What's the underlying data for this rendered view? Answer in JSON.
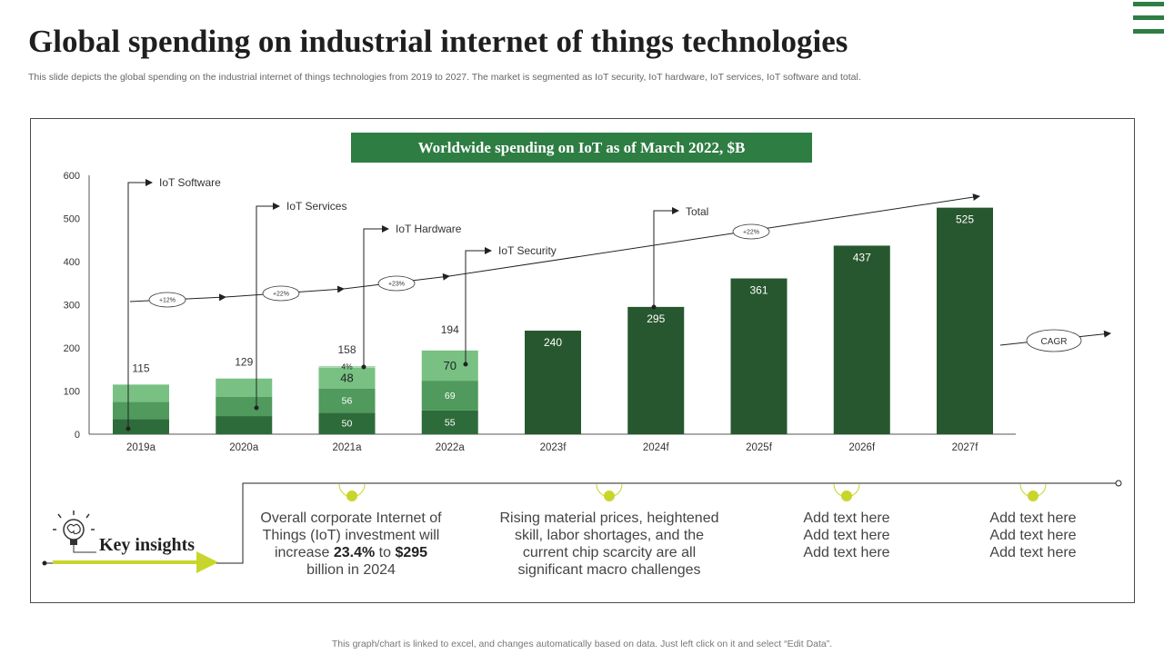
{
  "header": {
    "title": "Global spending on industrial internet of things technologies",
    "subtitle": "This slide depicts the global spending on the industrial internet of things technologies from 2019 to 2027. The market is segmented as IoT security, IoT hardware, IoT services, IoT software and total."
  },
  "colors": {
    "dark_green": "#2e6b3a",
    "bar_total": "#27572f",
    "seg_security": "#2e6b3a",
    "seg_hardware": "#4f9a5c",
    "seg_services": "#78c183",
    "seg_software": "#a8d8ad",
    "accent_yellow": "#c8d62b"
  },
  "chart_data": {
    "type": "bar",
    "title": "Worldwide spending on IoT as of March 2022, $B",
    "categories": [
      "2019a",
      "2020a",
      "2021a",
      "2022a",
      "2023f",
      "2024f",
      "2025f",
      "2026f",
      "2027f"
    ],
    "ylim": [
      0,
      600
    ],
    "yticks": [
      0,
      100,
      200,
      300,
      400,
      500,
      600
    ],
    "totals": [
      115,
      129,
      158,
      194,
      240,
      295,
      361,
      437,
      525
    ],
    "stacked": [
      {
        "category": "2019a",
        "segments": [
          35,
          40,
          40,
          0
        ]
      },
      {
        "category": "2020a",
        "segments": [
          42,
          45,
          42,
          0
        ]
      },
      {
        "category": "2021a",
        "segments": [
          50,
          56,
          48,
          4
        ]
      },
      {
        "category": "2022a",
        "segments": [
          55,
          69,
          70,
          0
        ]
      }
    ],
    "segment_labels": {
      "2021a": [
        "50",
        "56",
        "48",
        "4%"
      ],
      "2022a": [
        "55",
        "69",
        "70",
        ""
      ]
    },
    "series_callouts": [
      "IoT Software",
      "IoT Services",
      "IoT Hardware",
      "IoT Security",
      "Total"
    ],
    "cagr_label": "CAGR",
    "growth_rates": [
      "+12%",
      "+22%",
      "+23%",
      "+22%"
    ]
  },
  "insights": {
    "key_label": "Key insights",
    "item1": {
      "pre": "Overall corporate Internet of Things (IoT) investment will increase ",
      "bold1": "23.4%",
      "mid": " to ",
      "bold2": "$295",
      "post": " billion in 2024"
    },
    "item2": "Rising material prices, heightened skill, labor shortages, and the current chip scarcity are all significant macro challenges",
    "item3": [
      "Add text here",
      "Add text here",
      "Add text here"
    ],
    "item4": [
      "Add text here",
      "Add text here",
      "Add text here"
    ]
  },
  "footer": "This graph/chart is linked to excel,  and changes automatically based on data. Just left click on it and select “Edit Data”."
}
